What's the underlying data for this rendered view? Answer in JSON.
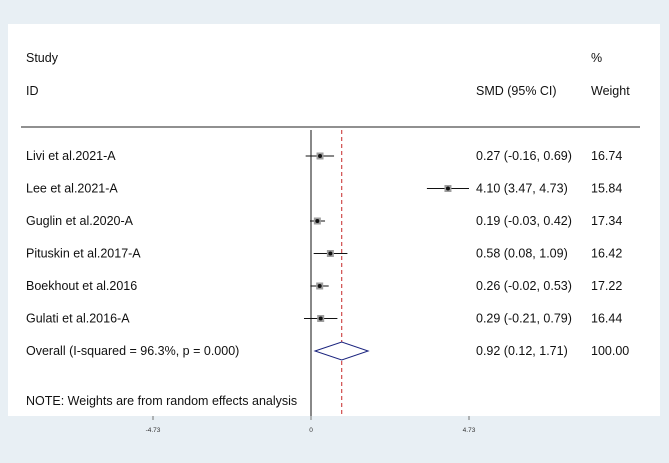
{
  "header": {
    "study_label": "Study",
    "id_label": "ID",
    "effect_label": "SMD (95% CI)",
    "pct_label": "%",
    "weight_label": "Weight"
  },
  "note": "NOTE: Weights are from random effects analysis",
  "colors": {
    "background": "#e8eff4",
    "panel": "#ffffff",
    "diamond": "#1a237e",
    "overall_line": "#c62828",
    "marker": "#111111"
  },
  "chart_data": {
    "type": "forest",
    "xlim": [
      -4.73,
      4.73
    ],
    "x_ticks": [
      {
        "value": -4.73,
        "label": "-4.73"
      },
      {
        "value": 0,
        "label": "0"
      },
      {
        "value": 4.73,
        "label": "4.73"
      }
    ],
    "null_line": 0,
    "studies": [
      {
        "name": "Livi et al.2021-A",
        "est": 0.27,
        "lo": -0.16,
        "hi": 0.69,
        "ci_text": "0.27 (-0.16, 0.69)",
        "weight": "16.74"
      },
      {
        "name": "Lee et al.2021-A",
        "est": 4.1,
        "lo": 3.47,
        "hi": 4.73,
        "ci_text": "4.10 (3.47, 4.73)",
        "weight": "15.84"
      },
      {
        "name": "Guglin et al.2020-A",
        "est": 0.19,
        "lo": -0.03,
        "hi": 0.42,
        "ci_text": "0.19 (-0.03, 0.42)",
        "weight": "17.34"
      },
      {
        "name": "Pituskin et al.2017-A",
        "est": 0.58,
        "lo": 0.08,
        "hi": 1.09,
        "ci_text": "0.58 (0.08, 1.09)",
        "weight": "16.42"
      },
      {
        "name": "Boekhout et al.2016",
        "est": 0.26,
        "lo": -0.02,
        "hi": 0.53,
        "ci_text": "0.26 (-0.02, 0.53)",
        "weight": "17.22"
      },
      {
        "name": "Gulati et al.2016-A",
        "est": 0.29,
        "lo": -0.21,
        "hi": 0.79,
        "ci_text": "0.29 (-0.21, 0.79)",
        "weight": "16.44"
      }
    ],
    "overall": {
      "label": "Overall  (I-squared = 96.3%, p = 0.000)",
      "est": 0.92,
      "lo": 0.12,
      "hi": 1.71,
      "ci_text": "0.92 (0.12, 1.71)",
      "weight": "100.00"
    }
  }
}
